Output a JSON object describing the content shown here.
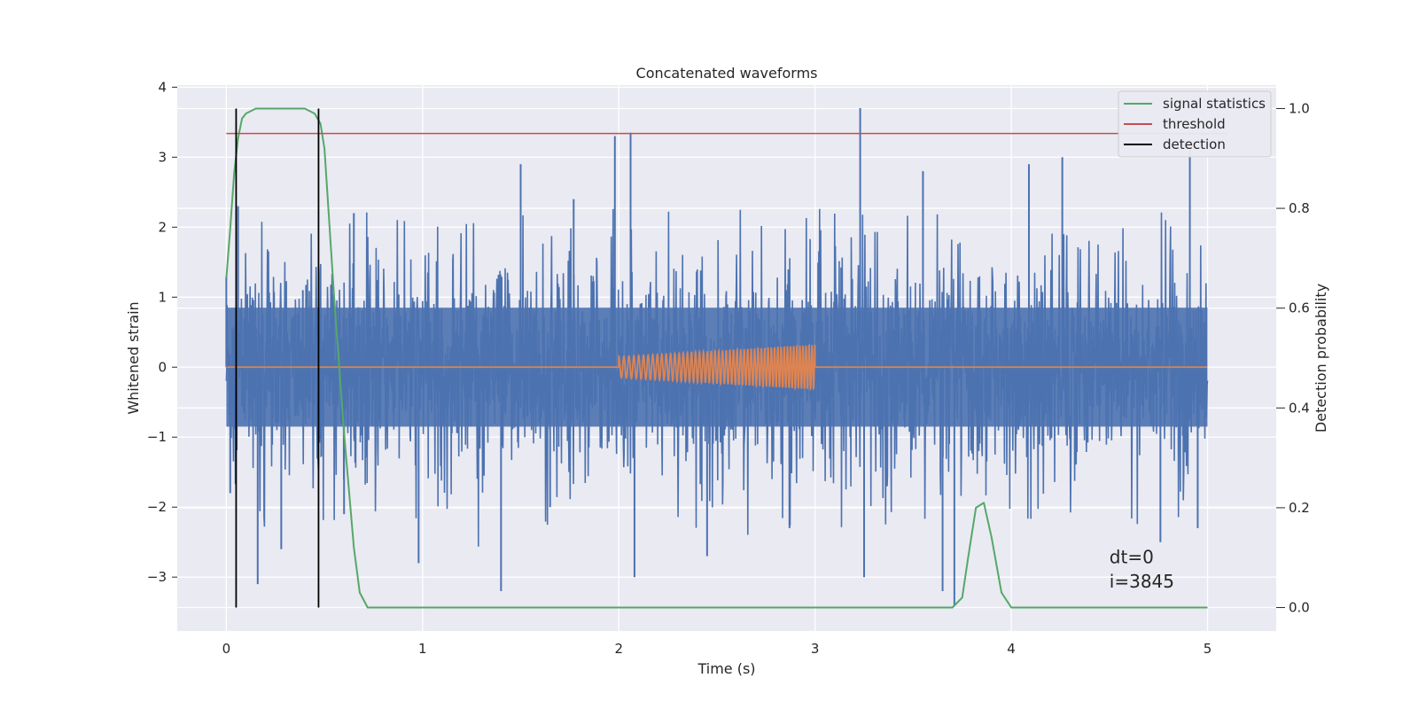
{
  "chart_data": {
    "type": "line",
    "title": "Concatenated waveforms",
    "xlabel": "Time (s)",
    "ylabel": "Whitened strain",
    "y2label": "Detection probability",
    "xlim": [
      -0.25,
      5.35
    ],
    "ylim": [
      -3.77,
      4.03
    ],
    "y2lim": [
      -0.047,
      1.047
    ],
    "xticks": [
      0,
      1,
      2,
      3,
      4,
      5
    ],
    "yticks": [
      -3,
      -2,
      -1,
      0,
      1,
      2,
      3,
      4
    ],
    "y2ticks": [
      0.0,
      0.2,
      0.4,
      0.6,
      0.8,
      1.0
    ],
    "grid": true,
    "legend_position": "top-right",
    "series": [
      {
        "name": "",
        "kind": "noise",
        "axis": "left",
        "color": "#4c72b0",
        "x_range": [
          0,
          5
        ],
        "core_amplitude": 0.85,
        "burst_peaks": [
          {
            "x": 0.0,
            "y": 1.3
          },
          {
            "x": 0.02,
            "y": -1.8
          },
          {
            "x": 0.06,
            "y": 2.3
          },
          {
            "x": 0.16,
            "y": -3.1
          },
          {
            "x": 0.28,
            "y": -2.6
          },
          {
            "x": 0.39,
            "y": 1.1
          },
          {
            "x": 0.6,
            "y": -2.1
          },
          {
            "x": 0.65,
            "y": 2.2
          },
          {
            "x": 0.98,
            "y": -2.8
          },
          {
            "x": 1.4,
            "y": -3.2
          },
          {
            "x": 1.5,
            "y": 2.9
          },
          {
            "x": 1.65,
            "y": -2.0
          },
          {
            "x": 1.77,
            "y": 2.4
          },
          {
            "x": 1.98,
            "y": 3.3
          },
          {
            "x": 2.06,
            "y": 3.35
          },
          {
            "x": 2.08,
            "y": -3.0
          },
          {
            "x": 2.45,
            "y": -2.7
          },
          {
            "x": 2.87,
            "y": -2.3
          },
          {
            "x": 3.23,
            "y": 3.7
          },
          {
            "x": 3.25,
            "y": -3.0
          },
          {
            "x": 3.55,
            "y": 2.8
          },
          {
            "x": 3.65,
            "y": -3.2
          },
          {
            "x": 3.71,
            "y": -3.4
          },
          {
            "x": 4.09,
            "y": 2.9
          },
          {
            "x": 4.26,
            "y": 3.0
          },
          {
            "x": 4.76,
            "y": -2.5
          },
          {
            "x": 4.91,
            "y": 3.1
          },
          {
            "x": 4.95,
            "y": -2.3
          }
        ]
      },
      {
        "name": "",
        "kind": "chirp",
        "axis": "left",
        "color": "#dd8452",
        "x_range": [
          0,
          5
        ],
        "chirp_range": [
          2.0,
          3.0
        ],
        "amplitude_start": 0.15,
        "amplitude_end": 0.32
      },
      {
        "name": "signal statistics",
        "kind": "line",
        "axis": "right",
        "color": "#55a868",
        "x": [
          0.0,
          0.02,
          0.04,
          0.06,
          0.08,
          0.1,
          0.15,
          0.2,
          0.3,
          0.4,
          0.45,
          0.48,
          0.5,
          0.52,
          0.55,
          0.6,
          0.65,
          0.68,
          0.72,
          0.8,
          1.0,
          2.0,
          3.0,
          3.5,
          3.7,
          3.75,
          3.78,
          3.82,
          3.86,
          3.9,
          3.95,
          4.0,
          4.5,
          5.0
        ],
        "y": [
          0.66,
          0.76,
          0.87,
          0.94,
          0.98,
          0.99,
          1.0,
          1.0,
          1.0,
          1.0,
          0.99,
          0.97,
          0.92,
          0.8,
          0.62,
          0.35,
          0.12,
          0.03,
          0.0,
          0.0,
          0.0,
          0.0,
          0.0,
          0.0,
          0.0,
          0.02,
          0.1,
          0.2,
          0.21,
          0.14,
          0.03,
          0.0,
          0.0,
          0.0
        ]
      },
      {
        "name": "threshold",
        "kind": "hline",
        "axis": "right",
        "color": "#c44e52",
        "x": [
          0,
          5.1
        ],
        "y": 0.95
      },
      {
        "name": "detection",
        "kind": "vlines",
        "axis": "right",
        "color": "#000000",
        "x": [
          0.05,
          0.47
        ],
        "y": [
          0.0,
          1.0
        ]
      }
    ],
    "annotations": [
      {
        "text": "dt=0",
        "x": 4.5,
        "y": -2.8
      },
      {
        "text": "i=3845",
        "x": 4.5,
        "y": -3.15
      }
    ]
  }
}
